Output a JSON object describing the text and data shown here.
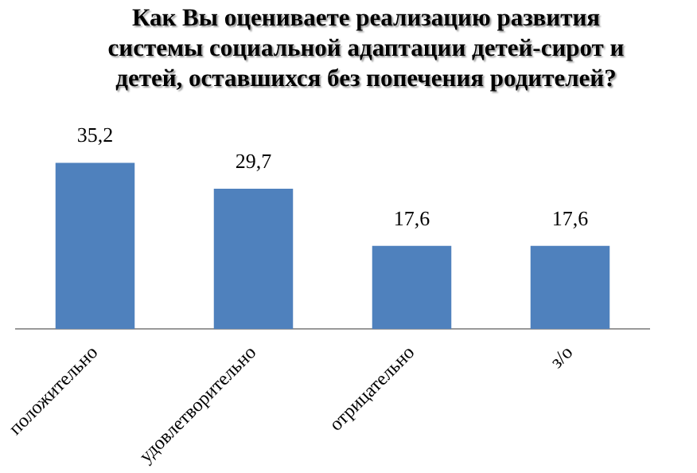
{
  "chart_data": {
    "type": "bar",
    "title": "Как Вы оцениваете реализацию развития системы социальной адаптации детей-сирот и детей, оставшихся  без попечения родителей?",
    "categories": [
      "положительно",
      "удовлетворительно",
      "отрицательно",
      "з/о"
    ],
    "values": [
      35.2,
      29.7,
      17.6,
      17.6
    ],
    "value_labels": [
      "35,2",
      "29,7",
      "17,6",
      "17,6"
    ],
    "color": "#4f81bd",
    "grid": false,
    "legend": false,
    "tick_labels": "x"
  }
}
